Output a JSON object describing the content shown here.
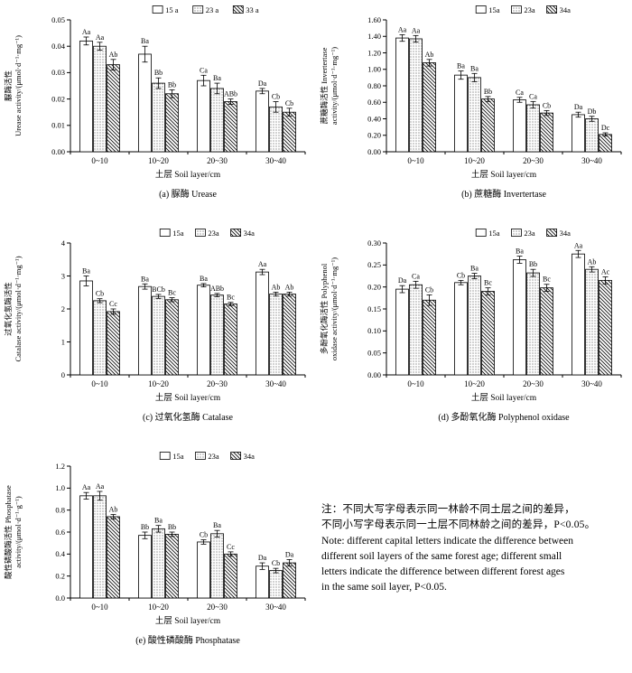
{
  "note": {
    "lines": [
      "注：不同大写字母表示同一林龄不同土层之间的差异，",
      "不同小写字母表示同一土层不同林龄之间的差异，P<0.05。",
      "Note: different capital letters indicate the difference between",
      "different soil layers of the same forest age; different small",
      "letters indicate the difference between different forest ages",
      "in the same soil layer, P<0.05."
    ]
  },
  "chart_data": [
    {
      "id": "a",
      "type": "bar",
      "title": "(a) 脲酶 Urease",
      "ylabel_lines": [
        "脲酶活性",
        "Urease activity/(μmol·d⁻¹·mg⁻¹)"
      ],
      "xlabel": "土层 Soil layer/cm",
      "categories": [
        "0~10",
        "10~20",
        "20~30",
        "30~40"
      ],
      "ylim": [
        0,
        0.05
      ],
      "yticks": [
        "0.00",
        "0.01",
        "0.02",
        "0.03",
        "0.04",
        "0.05"
      ],
      "legend_position": "top",
      "grid": false,
      "series": [
        {
          "name": "15 a",
          "pattern": "open",
          "values": [
            0.042,
            0.037,
            0.027,
            0.023
          ],
          "errors": [
            0.0015,
            0.003,
            0.002,
            0.001
          ],
          "labels": [
            "Aa",
            "Ba",
            "Ca",
            "Da"
          ]
        },
        {
          "name": "23 a",
          "pattern": "dots",
          "values": [
            0.04,
            0.026,
            0.024,
            0.017
          ],
          "errors": [
            0.0015,
            0.002,
            0.002,
            0.002
          ],
          "labels": [
            "Aa",
            "Bb",
            "Ba",
            "Cb"
          ]
        },
        {
          "name": "33 a",
          "pattern": "hatch",
          "values": [
            0.033,
            0.022,
            0.019,
            0.015
          ],
          "errors": [
            0.002,
            0.0015,
            0.001,
            0.0015
          ],
          "labels": [
            "Ab",
            "Bb",
            "ABb",
            "Cb"
          ]
        }
      ]
    },
    {
      "id": "b",
      "type": "bar",
      "title": "(b) 蔗糖酶 Invertertase",
      "ylabel_lines": [
        "蔗糖酶活性 Invertertase",
        "activity/(μmol·d⁻¹·mg⁻¹)"
      ],
      "xlabel": "土层 Soil layer/cm",
      "categories": [
        "0~10",
        "10~20",
        "20~30",
        "30~40"
      ],
      "ylim": [
        0,
        1.6
      ],
      "yticks": [
        "0.00",
        "0.20",
        "0.40",
        "0.60",
        "0.80",
        "1.00",
        "1.20",
        "1.40",
        "1.60"
      ],
      "legend_position": "top",
      "grid": false,
      "series": [
        {
          "name": "15a",
          "pattern": "open",
          "values": [
            1.38,
            0.93,
            0.63,
            0.45
          ],
          "errors": [
            0.04,
            0.05,
            0.03,
            0.03
          ],
          "labels": [
            "Aa",
            "Ba",
            "Ca",
            "Da"
          ]
        },
        {
          "name": "23a",
          "pattern": "dots",
          "values": [
            1.37,
            0.9,
            0.57,
            0.4
          ],
          "errors": [
            0.04,
            0.05,
            0.04,
            0.03
          ],
          "labels": [
            "Aa",
            "Ba",
            "Ca",
            "Db"
          ]
        },
        {
          "name": "34a",
          "pattern": "hatch",
          "values": [
            1.08,
            0.64,
            0.47,
            0.21
          ],
          "errors": [
            0.04,
            0.03,
            0.03,
            0.02
          ],
          "labels": [
            "Ab",
            "Bb",
            "Cb",
            "Dc"
          ]
        }
      ]
    },
    {
      "id": "c",
      "type": "bar",
      "title": "(c) 过氧化氢酶 Catalase",
      "ylabel_lines": [
        "过氧化氢酶活性",
        "Catalase activity/(μmol·d⁻¹·mg⁻¹)"
      ],
      "xlabel": "土层 Soil layer/cm",
      "categories": [
        "0~10",
        "10~20",
        "20~30",
        "30~40"
      ],
      "ylim": [
        0,
        4
      ],
      "yticks": [
        "0",
        "1",
        "2",
        "3",
        "4"
      ],
      "legend_position": "top",
      "grid": false,
      "series": [
        {
          "name": "15a",
          "pattern": "open",
          "values": [
            2.85,
            2.68,
            2.72,
            3.12
          ],
          "errors": [
            0.15,
            0.08,
            0.05,
            0.08
          ],
          "labels": [
            "Ba",
            "Ba",
            "Ba",
            "Aa"
          ]
        },
        {
          "name": "23a",
          "pattern": "dots",
          "values": [
            2.25,
            2.38,
            2.42,
            2.45
          ],
          "errors": [
            0.06,
            0.06,
            0.05,
            0.06
          ],
          "labels": [
            "Cb",
            "BCb",
            "ABb",
            "Ab"
          ]
        },
        {
          "name": "34a",
          "pattern": "hatch",
          "values": [
            1.92,
            2.28,
            2.15,
            2.45
          ],
          "errors": [
            0.08,
            0.06,
            0.05,
            0.06
          ],
          "labels": [
            "Cc",
            "Bc",
            "Bc",
            "Ab"
          ]
        }
      ]
    },
    {
      "id": "d",
      "type": "bar",
      "title": "(d) 多酚氧化酶 Polyphenol oxidase",
      "ylabel_lines": [
        "多酚氧化酶活性 Polyphenol",
        "oxidase activity/(μmol·d⁻¹·mg⁻¹)"
      ],
      "xlabel": "土层 Soil layer/cm",
      "categories": [
        "0~10",
        "10~20",
        "20~30",
        "30~40"
      ],
      "ylim": [
        0,
        0.3
      ],
      "yticks": [
        "0.00",
        "0.05",
        "0.10",
        "0.15",
        "0.20",
        "0.25",
        "0.30"
      ],
      "legend_position": "top",
      "grid": false,
      "series": [
        {
          "name": "15a",
          "pattern": "open",
          "values": [
            0.195,
            0.21,
            0.262,
            0.275
          ],
          "errors": [
            0.008,
            0.005,
            0.008,
            0.008
          ],
          "labels": [
            "Da",
            "Cb",
            "Ba",
            "Aa"
          ]
        },
        {
          "name": "23a",
          "pattern": "dots",
          "values": [
            0.205,
            0.225,
            0.232,
            0.24
          ],
          "errors": [
            0.008,
            0.006,
            0.008,
            0.006
          ],
          "labels": [
            "Ca",
            "Ba",
            "Bb",
            "Ab"
          ]
        },
        {
          "name": "34a",
          "pattern": "hatch",
          "values": [
            0.17,
            0.19,
            0.198,
            0.215
          ],
          "errors": [
            0.012,
            0.008,
            0.008,
            0.008
          ],
          "labels": [
            "Cb",
            "Bc",
            "Bc",
            "Ac"
          ]
        }
      ]
    },
    {
      "id": "e",
      "type": "bar",
      "title": "(e) 酸性磷酸酶 Phosphatase",
      "ylabel_lines": [
        "酸性磷酸酶活性 Phosphatase",
        "activity/(μmol·d⁻¹·g⁻¹)"
      ],
      "xlabel": "土层 Soil layer/cm",
      "categories": [
        "0~10",
        "10~20",
        "20~30",
        "30~40"
      ],
      "ylim": [
        0,
        1.2
      ],
      "yticks": [
        "0.0",
        "0.2",
        "0.4",
        "0.6",
        "0.8",
        "1.0",
        "1.2"
      ],
      "legend_position": "top",
      "grid": false,
      "series": [
        {
          "name": "15a",
          "pattern": "open",
          "values": [
            0.93,
            0.57,
            0.51,
            0.29
          ],
          "errors": [
            0.03,
            0.03,
            0.02,
            0.03
          ],
          "labels": [
            "Aa",
            "Bb",
            "Cb",
            "Da"
          ]
        },
        {
          "name": "23a",
          "pattern": "dots",
          "values": [
            0.93,
            0.63,
            0.585,
            0.25
          ],
          "errors": [
            0.04,
            0.03,
            0.03,
            0.02
          ],
          "labels": [
            "Aa",
            "Ba",
            "Ba",
            "Cb"
          ]
        },
        {
          "name": "34a",
          "pattern": "hatch",
          "values": [
            0.74,
            0.58,
            0.4,
            0.32
          ],
          "errors": [
            0.02,
            0.02,
            0.02,
            0.03
          ],
          "labels": [
            "Ab",
            "Bb",
            "Cc",
            "Da"
          ]
        }
      ]
    }
  ]
}
